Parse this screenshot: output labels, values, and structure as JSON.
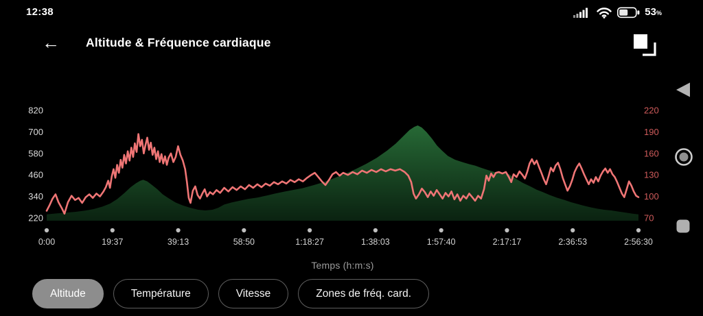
{
  "status_bar": {
    "time": "12:38",
    "battery_percent": "53",
    "percent_sign": "%"
  },
  "header": {
    "back_icon": "←",
    "title": "Altitude & Fréquence cardiaque"
  },
  "xaxis_title": "Temps (h:m:s)",
  "buttons": [
    {
      "label": "Altitude",
      "selected": true
    },
    {
      "label": "Température",
      "selected": false
    },
    {
      "label": "Vitesse",
      "selected": false
    },
    {
      "label": "Zones de fréq. card.",
      "selected": false
    }
  ],
  "colors": {
    "background": "#000000",
    "left_axis_text": "#dcdcdc",
    "right_axis_text": "#cf5b5b",
    "x_tick_text": "#d4d4d4",
    "tick_dot": "#c0c0c0",
    "heart_rate_line": "#ef7575",
    "altitude_fill_top": "#2d7a3e",
    "altitude_fill_bottom": "#0a2110",
    "selected_pill": "#8d8d8d"
  },
  "chart_data": {
    "type": "area+line",
    "title": "Altitude & Fréquence cardiaque",
    "xlabel": "Temps (h:m:s)",
    "x_tick_labels": [
      "0:00",
      "19:37",
      "39:13",
      "58:50",
      "1:18:27",
      "1:38:03",
      "1:57:40",
      "2:17:17",
      "2:36:53",
      "2:56:30"
    ],
    "left_axis": {
      "ticks": [
        820,
        700,
        580,
        460,
        340,
        220
      ],
      "range": [
        220,
        820
      ]
    },
    "right_axis": {
      "ticks": [
        220,
        190,
        160,
        130,
        100,
        70
      ],
      "range": [
        70,
        220
      ]
    },
    "series": [
      {
        "name": "Altitude",
        "kind": "area",
        "axis": "left",
        "points": [
          [
            0,
            240
          ],
          [
            0.015,
            245
          ],
          [
            0.03,
            249
          ],
          [
            0.048,
            254
          ],
          [
            0.065,
            261
          ],
          [
            0.08,
            270
          ],
          [
            0.094,
            283
          ],
          [
            0.107,
            300
          ],
          [
            0.119,
            325
          ],
          [
            0.131,
            358
          ],
          [
            0.142,
            392
          ],
          [
            0.151,
            414
          ],
          [
            0.158,
            427
          ],
          [
            0.163,
            433
          ],
          [
            0.17,
            424
          ],
          [
            0.178,
            404
          ],
          [
            0.187,
            380
          ],
          [
            0.196,
            352
          ],
          [
            0.206,
            330
          ],
          [
            0.218,
            306
          ],
          [
            0.23,
            290
          ],
          [
            0.243,
            276
          ],
          [
            0.256,
            266
          ],
          [
            0.268,
            262
          ],
          [
            0.28,
            266
          ],
          [
            0.29,
            277
          ],
          [
            0.3,
            295
          ],
          [
            0.312,
            306
          ],
          [
            0.326,
            316
          ],
          [
            0.34,
            326
          ],
          [
            0.356,
            334
          ],
          [
            0.372,
            345
          ],
          [
            0.386,
            356
          ],
          [
            0.402,
            367
          ],
          [
            0.418,
            377
          ],
          [
            0.432,
            386
          ],
          [
            0.45,
            402
          ],
          [
            0.468,
            420
          ],
          [
            0.486,
            442
          ],
          [
            0.504,
            466
          ],
          [
            0.522,
            492
          ],
          [
            0.54,
            522
          ],
          [
            0.558,
            556
          ],
          [
            0.575,
            595
          ],
          [
            0.59,
            635
          ],
          [
            0.603,
            678
          ],
          [
            0.613,
            710
          ],
          [
            0.621,
            728
          ],
          [
            0.627,
            736
          ],
          [
            0.634,
            724
          ],
          [
            0.642,
            698
          ],
          [
            0.651,
            662
          ],
          [
            0.66,
            622
          ],
          [
            0.668,
            596
          ],
          [
            0.678,
            566
          ],
          [
            0.69,
            545
          ],
          [
            0.702,
            532
          ],
          [
            0.714,
            520
          ],
          [
            0.724,
            512
          ],
          [
            0.734,
            500
          ],
          [
            0.745,
            488
          ],
          [
            0.756,
            477
          ],
          [
            0.768,
            470
          ],
          [
            0.78,
            466
          ],
          [
            0.792,
            440
          ],
          [
            0.805,
            415
          ],
          [
            0.818,
            395
          ],
          [
            0.828,
            378
          ],
          [
            0.838,
            365
          ],
          [
            0.85,
            348
          ],
          [
            0.862,
            333
          ],
          [
            0.875,
            320
          ],
          [
            0.886,
            308
          ],
          [
            0.895,
            300
          ],
          [
            0.906,
            290
          ],
          [
            0.918,
            280
          ],
          [
            0.93,
            272
          ],
          [
            0.942,
            266
          ],
          [
            0.954,
            262
          ],
          [
            0.966,
            256
          ],
          [
            0.978,
            250
          ],
          [
            0.99,
            244
          ],
          [
            1,
            240
          ]
        ]
      },
      {
        "name": "Fréquence cardiaque",
        "kind": "line",
        "axis": "right",
        "points": [
          [
            0,
            80
          ],
          [
            0.005,
            88
          ],
          [
            0.01,
            97
          ],
          [
            0.015,
            103
          ],
          [
            0.02,
            92
          ],
          [
            0.026,
            83
          ],
          [
            0.03,
            76
          ],
          [
            0.036,
            92
          ],
          [
            0.042,
            101
          ],
          [
            0.048,
            95
          ],
          [
            0.054,
            98
          ],
          [
            0.06,
            91
          ],
          [
            0.066,
            99
          ],
          [
            0.072,
            103
          ],
          [
            0.078,
            98
          ],
          [
            0.084,
            104
          ],
          [
            0.09,
            100
          ],
          [
            0.096,
            107
          ],
          [
            0.1,
            113
          ],
          [
            0.104,
            122
          ],
          [
            0.107,
            112
          ],
          [
            0.11,
            128
          ],
          [
            0.113,
            138
          ],
          [
            0.116,
            126
          ],
          [
            0.119,
            144
          ],
          [
            0.122,
            133
          ],
          [
            0.125,
            151
          ],
          [
            0.128,
            140
          ],
          [
            0.131,
            158
          ],
          [
            0.134,
            146
          ],
          [
            0.137,
            163
          ],
          [
            0.14,
            150
          ],
          [
            0.143,
            168
          ],
          [
            0.146,
            155
          ],
          [
            0.149,
            174
          ],
          [
            0.152,
            162
          ],
          [
            0.155,
            187
          ],
          [
            0.158,
            170
          ],
          [
            0.161,
            179
          ],
          [
            0.164,
            160
          ],
          [
            0.167,
            172
          ],
          [
            0.17,
            182
          ],
          [
            0.173,
            165
          ],
          [
            0.176,
            175
          ],
          [
            0.179,
            158
          ],
          [
            0.182,
            168
          ],
          [
            0.185,
            152
          ],
          [
            0.188,
            163
          ],
          [
            0.191,
            148
          ],
          [
            0.194,
            159
          ],
          [
            0.197,
            146
          ],
          [
            0.2,
            156
          ],
          [
            0.203,
            144
          ],
          [
            0.206,
            154
          ],
          [
            0.21,
            160
          ],
          [
            0.214,
            148
          ],
          [
            0.218,
            155
          ],
          [
            0.222,
            170
          ],
          [
            0.226,
            158
          ],
          [
            0.23,
            150
          ],
          [
            0.234,
            138
          ],
          [
            0.237,
            120
          ],
          [
            0.24,
            98
          ],
          [
            0.243,
            91
          ],
          [
            0.247,
            108
          ],
          [
            0.251,
            114
          ],
          [
            0.255,
            102
          ],
          [
            0.259,
            97
          ],
          [
            0.263,
            104
          ],
          [
            0.267,
            110
          ],
          [
            0.271,
            100
          ],
          [
            0.276,
            106
          ],
          [
            0.281,
            103
          ],
          [
            0.287,
            109
          ],
          [
            0.293,
            105
          ],
          [
            0.3,
            112
          ],
          [
            0.307,
            107
          ],
          [
            0.314,
            113
          ],
          [
            0.321,
            109
          ],
          [
            0.328,
            114
          ],
          [
            0.335,
            110
          ],
          [
            0.342,
            116
          ],
          [
            0.349,
            112
          ],
          [
            0.356,
            117
          ],
          [
            0.363,
            113
          ],
          [
            0.37,
            118
          ],
          [
            0.377,
            115
          ],
          [
            0.384,
            120
          ],
          [
            0.391,
            117
          ],
          [
            0.398,
            121
          ],
          [
            0.405,
            118
          ],
          [
            0.412,
            123
          ],
          [
            0.419,
            120
          ],
          [
            0.426,
            124
          ],
          [
            0.433,
            121
          ],
          [
            0.44,
            126
          ],
          [
            0.447,
            130
          ],
          [
            0.453,
            133
          ],
          [
            0.459,
            127
          ],
          [
            0.465,
            121
          ],
          [
            0.471,
            116
          ],
          [
            0.477,
            123
          ],
          [
            0.483,
            131
          ],
          [
            0.489,
            134
          ],
          [
            0.495,
            129
          ],
          [
            0.501,
            133
          ],
          [
            0.509,
            130
          ],
          [
            0.517,
            134
          ],
          [
            0.525,
            131
          ],
          [
            0.533,
            136
          ],
          [
            0.541,
            133
          ],
          [
            0.549,
            137
          ],
          [
            0.557,
            134
          ],
          [
            0.565,
            138
          ],
          [
            0.573,
            135
          ],
          [
            0.581,
            138
          ],
          [
            0.589,
            136
          ],
          [
            0.597,
            138
          ],
          [
            0.605,
            134
          ],
          [
            0.611,
            129
          ],
          [
            0.616,
            120
          ],
          [
            0.62,
            104
          ],
          [
            0.624,
            97
          ],
          [
            0.629,
            103
          ],
          [
            0.634,
            111
          ],
          [
            0.639,
            106
          ],
          [
            0.644,
            99
          ],
          [
            0.649,
            107
          ],
          [
            0.654,
            101
          ],
          [
            0.659,
            109
          ],
          [
            0.664,
            103
          ],
          [
            0.669,
            97
          ],
          [
            0.674,
            105
          ],
          [
            0.679,
            100
          ],
          [
            0.684,
            107
          ],
          [
            0.689,
            96
          ],
          [
            0.694,
            103
          ],
          [
            0.699,
            94
          ],
          [
            0.704,
            101
          ],
          [
            0.709,
            97
          ],
          [
            0.714,
            104
          ],
          [
            0.719,
            99
          ],
          [
            0.724,
            94
          ],
          [
            0.729,
            101
          ],
          [
            0.734,
            97
          ],
          [
            0.739,
            110
          ],
          [
            0.743,
            129
          ],
          [
            0.747,
            122
          ],
          [
            0.751,
            132
          ],
          [
            0.755,
            127
          ],
          [
            0.759,
            133
          ],
          [
            0.764,
            134
          ],
          [
            0.77,
            132
          ],
          [
            0.776,
            134
          ],
          [
            0.781,
            127
          ],
          [
            0.785,
            120
          ],
          [
            0.789,
            131
          ],
          [
            0.794,
            127
          ],
          [
            0.799,
            135
          ],
          [
            0.804,
            130
          ],
          [
            0.808,
            125
          ],
          [
            0.812,
            134
          ],
          [
            0.816,
            146
          ],
          [
            0.82,
            152
          ],
          [
            0.824,
            145
          ],
          [
            0.828,
            150
          ],
          [
            0.832,
            141
          ],
          [
            0.836,
            133
          ],
          [
            0.84,
            124
          ],
          [
            0.844,
            117
          ],
          [
            0.848,
            128
          ],
          [
            0.852,
            140
          ],
          [
            0.856,
            135
          ],
          [
            0.86,
            143
          ],
          [
            0.864,
            147
          ],
          [
            0.868,
            138
          ],
          [
            0.872,
            126
          ],
          [
            0.876,
            117
          ],
          [
            0.88,
            108
          ],
          [
            0.884,
            114
          ],
          [
            0.888,
            123
          ],
          [
            0.892,
            134
          ],
          [
            0.896,
            141
          ],
          [
            0.9,
            146
          ],
          [
            0.904,
            139
          ],
          [
            0.908,
            131
          ],
          [
            0.912,
            124
          ],
          [
            0.916,
            117
          ],
          [
            0.92,
            124
          ],
          [
            0.924,
            119
          ],
          [
            0.928,
            127
          ],
          [
            0.932,
            121
          ],
          [
            0.936,
            129
          ],
          [
            0.94,
            135
          ],
          [
            0.944,
            139
          ],
          [
            0.948,
            133
          ],
          [
            0.952,
            138
          ],
          [
            0.956,
            131
          ],
          [
            0.96,
            127
          ],
          [
            0.964,
            120
          ],
          [
            0.968,
            112
          ],
          [
            0.972,
            104
          ],
          [
            0.976,
            99
          ],
          [
            0.98,
            110
          ],
          [
            0.984,
            121
          ],
          [
            0.988,
            115
          ],
          [
            0.992,
            107
          ],
          [
            0.996,
            101
          ],
          [
            1,
            99
          ]
        ]
      }
    ]
  }
}
